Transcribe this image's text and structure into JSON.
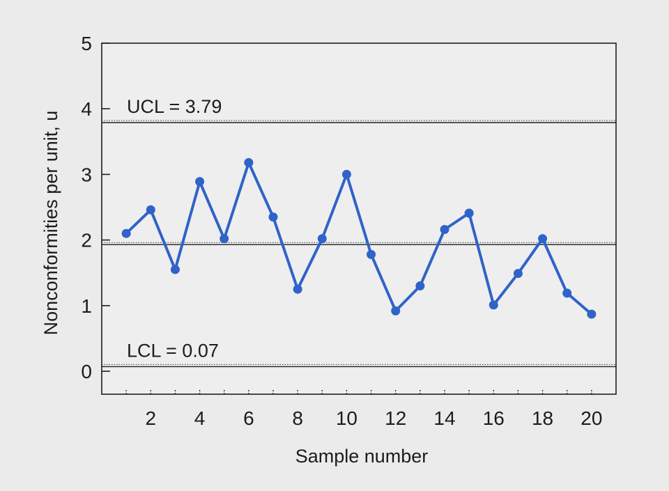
{
  "chart_data": {
    "type": "line",
    "xlabel": "Sample number",
    "ylabel": "Nonconformities per unit, u",
    "xlim": [
      0,
      21
    ],
    "ylim": [
      -0.35,
      5
    ],
    "x_ticks": [
      2,
      4,
      6,
      8,
      10,
      12,
      14,
      16,
      18,
      20
    ],
    "x_minor_ticks": [
      1,
      3,
      5,
      7,
      9,
      11,
      13,
      15,
      17,
      19
    ],
    "y_ticks": [
      0,
      1,
      2,
      3,
      4,
      5
    ],
    "grid": false,
    "series": [
      {
        "color": "#2f63c9",
        "x": [
          1,
          2,
          3,
          4,
          5,
          6,
          7,
          8,
          9,
          10,
          11,
          12,
          13,
          14,
          15,
          16,
          17,
          18,
          19,
          20
        ],
        "values": [
          2.1,
          2.46,
          1.55,
          2.89,
          2.02,
          3.18,
          2.35,
          1.25,
          2.02,
          3.0,
          1.78,
          0.92,
          1.3,
          2.16,
          2.41,
          1.01,
          1.49,
          2.02,
          1.19,
          0.87
        ]
      }
    ],
    "control_limits": [
      {
        "label": "UCL = 3.79",
        "value": 3.79
      },
      {
        "label": "LCL = 0.07",
        "value": 0.07
      }
    ],
    "center_line": {
      "value": 1.93
    },
    "line_color": "#2f63c9"
  }
}
